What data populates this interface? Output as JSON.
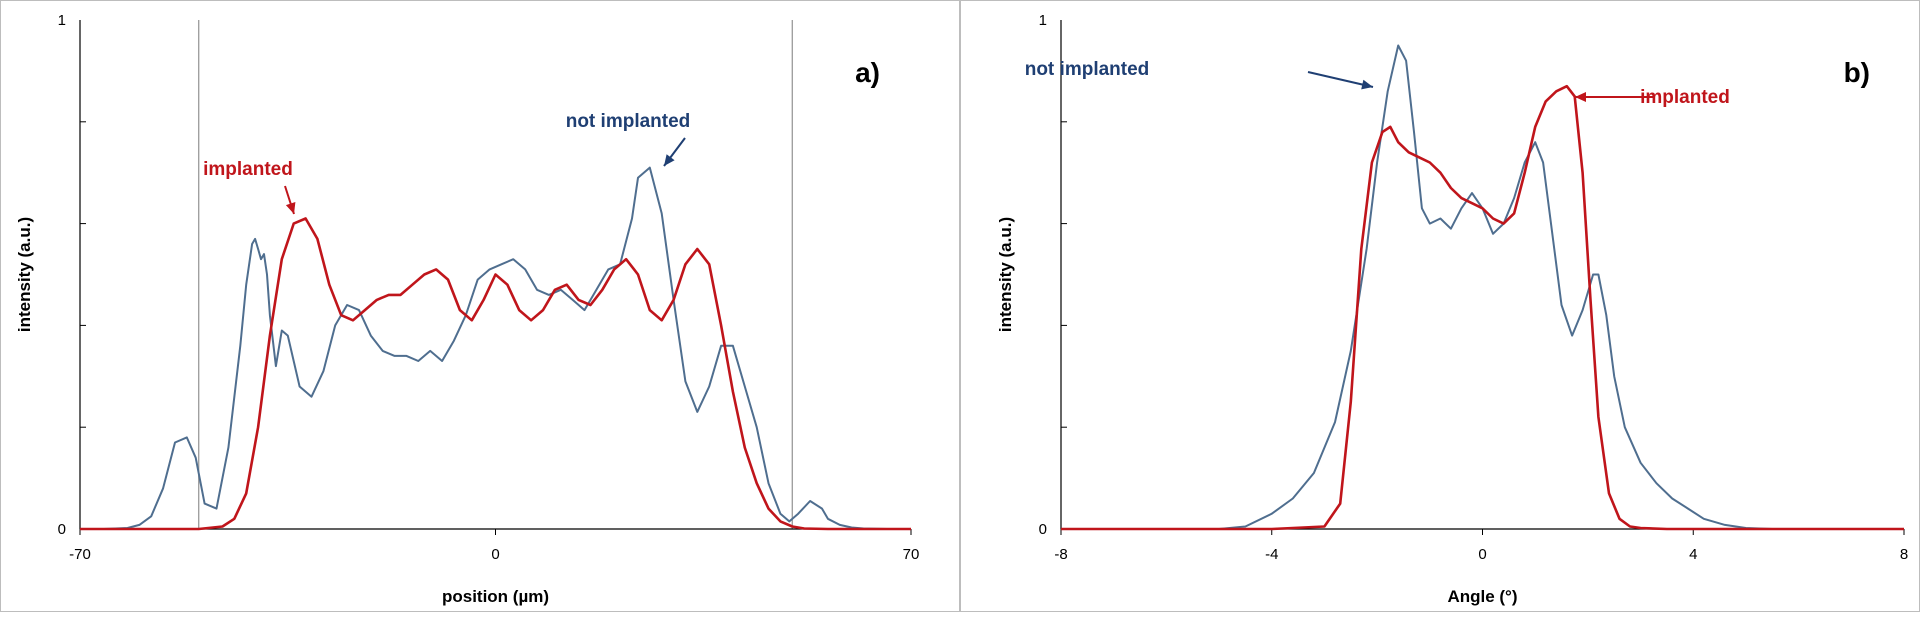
{
  "colors": {
    "not_implanted": "#4f6e8f",
    "implanted": "#c0151b",
    "not_implanted_label": "#1f3f73",
    "implanted_label": "#c0151b",
    "frame": "#bdbdbd",
    "guide_line": "#9a9a9a"
  },
  "chart_data": [
    {
      "type": "line",
      "panel_label": "a)",
      "xlabel": "position (µm)",
      "ylabel": "intensity (a.u.)",
      "xlim": [
        -70,
        70
      ],
      "ylim": [
        0,
        1
      ],
      "xticks": [
        -70,
        0,
        70
      ],
      "yticks": [
        0,
        1
      ],
      "guide_lines_x": [
        -50,
        50
      ],
      "annotations": [
        {
          "text": "not implanted",
          "series": 0
        },
        {
          "text": "implanted",
          "series": 1
        }
      ],
      "series": [
        {
          "name": "not implanted",
          "x": [
            -70,
            -66,
            -62,
            -60,
            -58,
            -56,
            -54,
            -52,
            -50.5,
            -49,
            -47,
            -45,
            -43,
            -42,
            -41,
            -40.5,
            -40,
            -39.5,
            -39,
            -38.5,
            -38,
            -37,
            -36,
            -35,
            -33,
            -31,
            -29,
            -27,
            -25,
            -23,
            -21,
            -19,
            -17,
            -15,
            -13,
            -11,
            -9,
            -7,
            -5,
            -3,
            -1,
            1,
            3,
            5,
            7,
            9,
            11,
            13,
            15,
            17,
            19,
            21,
            23,
            24,
            26,
            28,
            30,
            32,
            34,
            36,
            38,
            40,
            42,
            44,
            46,
            48,
            49.5,
            51,
            53,
            55,
            56,
            58,
            60,
            62,
            66,
            70
          ],
          "y": [
            0,
            0,
            0.002,
            0.008,
            0.025,
            0.08,
            0.17,
            0.18,
            0.14,
            0.05,
            0.04,
            0.16,
            0.36,
            0.48,
            0.56,
            0.57,
            0.55,
            0.53,
            0.54,
            0.5,
            0.42,
            0.32,
            0.39,
            0.38,
            0.28,
            0.26,
            0.31,
            0.4,
            0.44,
            0.43,
            0.38,
            0.35,
            0.34,
            0.34,
            0.33,
            0.35,
            0.33,
            0.37,
            0.42,
            0.49,
            0.51,
            0.52,
            0.53,
            0.51,
            0.47,
            0.46,
            0.47,
            0.45,
            0.43,
            0.47,
            0.51,
            0.52,
            0.61,
            0.69,
            0.71,
            0.62,
            0.45,
            0.29,
            0.23,
            0.28,
            0.36,
            0.36,
            0.28,
            0.2,
            0.09,
            0.03,
            0.015,
            0.03,
            0.055,
            0.04,
            0.02,
            0.008,
            0.003,
            0.001,
            0,
            0
          ]
        },
        {
          "name": "implanted",
          "x": [
            -70,
            -50,
            -46,
            -44,
            -42,
            -40,
            -38,
            -36,
            -34,
            -32,
            -30,
            -28,
            -26,
            -24,
            -22,
            -20,
            -18,
            -16,
            -14,
            -12,
            -10,
            -8,
            -6,
            -4,
            -2,
            0,
            2,
            4,
            6,
            8,
            10,
            12,
            14,
            16,
            18,
            20,
            22,
            24,
            26,
            28,
            30,
            32,
            34,
            36,
            38,
            40,
            42,
            44,
            46,
            48,
            50,
            52,
            56,
            70
          ],
          "y": [
            0,
            0,
            0.005,
            0.02,
            0.07,
            0.2,
            0.38,
            0.53,
            0.6,
            0.61,
            0.57,
            0.48,
            0.42,
            0.41,
            0.43,
            0.45,
            0.46,
            0.46,
            0.48,
            0.5,
            0.51,
            0.49,
            0.43,
            0.41,
            0.45,
            0.5,
            0.48,
            0.43,
            0.41,
            0.43,
            0.47,
            0.48,
            0.45,
            0.44,
            0.47,
            0.51,
            0.53,
            0.5,
            0.43,
            0.41,
            0.45,
            0.52,
            0.55,
            0.52,
            0.4,
            0.27,
            0.16,
            0.09,
            0.04,
            0.015,
            0.005,
            0.001,
            0,
            0
          ]
        }
      ]
    },
    {
      "type": "line",
      "panel_label": "b)",
      "xlabel": "Angle (°)",
      "ylabel": "intensity (a.u.)",
      "xlim": [
        -8,
        8
      ],
      "ylim": [
        0,
        1
      ],
      "xticks": [
        -8,
        -4,
        0,
        4,
        8
      ],
      "yticks": [
        0,
        1
      ],
      "annotations": [
        {
          "text": "not implanted",
          "series": 0
        },
        {
          "text": "implanted",
          "series": 1
        }
      ],
      "series": [
        {
          "name": "not implanted",
          "x": [
            -8,
            -5,
            -4.5,
            -4,
            -3.6,
            -3.2,
            -2.8,
            -2.5,
            -2.2,
            -2,
            -1.8,
            -1.6,
            -1.45,
            -1.3,
            -1.15,
            -1,
            -0.8,
            -0.6,
            -0.4,
            -0.2,
            0,
            0.2,
            0.4,
            0.6,
            0.8,
            1,
            1.15,
            1.3,
            1.5,
            1.7,
            1.9,
            2.1,
            2.2,
            2.35,
            2.5,
            2.7,
            3,
            3.3,
            3.6,
            3.9,
            4.2,
            4.6,
            5,
            5.5,
            8
          ],
          "y": [
            0,
            0,
            0.005,
            0.03,
            0.06,
            0.11,
            0.21,
            0.35,
            0.55,
            0.72,
            0.86,
            0.95,
            0.92,
            0.78,
            0.63,
            0.6,
            0.61,
            0.59,
            0.63,
            0.66,
            0.63,
            0.58,
            0.6,
            0.65,
            0.72,
            0.76,
            0.72,
            0.6,
            0.44,
            0.38,
            0.43,
            0.5,
            0.5,
            0.42,
            0.3,
            0.2,
            0.13,
            0.09,
            0.06,
            0.04,
            0.02,
            0.008,
            0.002,
            0,
            0
          ]
        },
        {
          "name": "implanted",
          "x": [
            -8,
            -4,
            -3,
            -2.7,
            -2.5,
            -2.3,
            -2.1,
            -1.9,
            -1.75,
            -1.6,
            -1.4,
            -1.2,
            -1,
            -0.8,
            -0.6,
            -0.4,
            -0.2,
            0,
            0.2,
            0.4,
            0.6,
            0.8,
            1,
            1.2,
            1.4,
            1.6,
            1.75,
            1.9,
            2.05,
            2.2,
            2.4,
            2.6,
            2.8,
            3,
            3.5,
            4,
            8
          ],
          "y": [
            0,
            0,
            0.005,
            0.05,
            0.25,
            0.55,
            0.72,
            0.78,
            0.79,
            0.76,
            0.74,
            0.73,
            0.72,
            0.7,
            0.67,
            0.65,
            0.64,
            0.63,
            0.61,
            0.6,
            0.62,
            0.7,
            0.79,
            0.84,
            0.86,
            0.87,
            0.85,
            0.7,
            0.45,
            0.22,
            0.07,
            0.02,
            0.005,
            0.002,
            0,
            0,
            0
          ]
        }
      ]
    }
  ]
}
